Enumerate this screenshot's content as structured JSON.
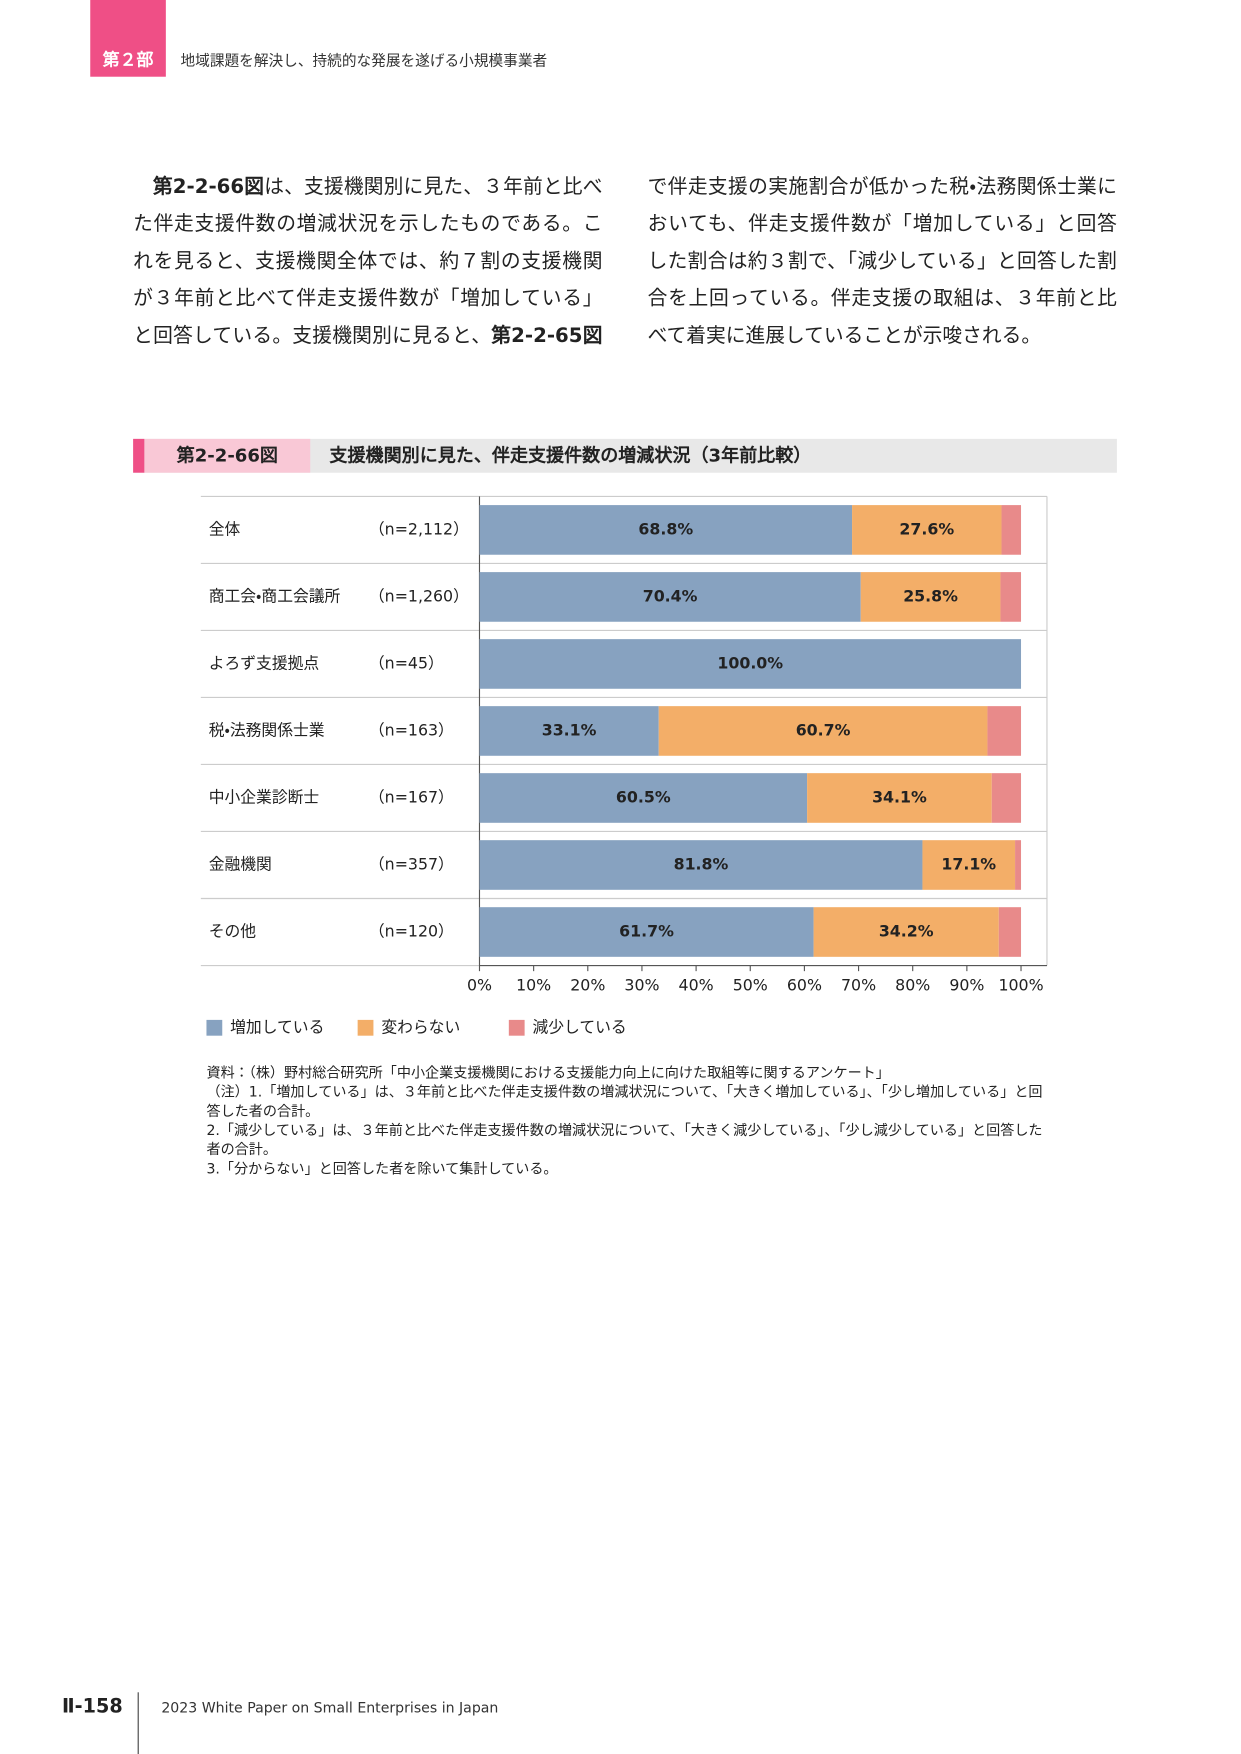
{
  "header": {
    "part": "第２部",
    "title": "地域課題を解決し、持続的な発展を遂げる小規模事業者"
  },
  "body": [
    "第2-2-66図",
    "は、支援機関別に見た、３年前と比べた伴走支援件数の増減状況を示したものである。これを見ると、支援機関全体では、約７割の支援機関が３年前と比べて伴走支援件数が「増加している」と回答している。支援機関別に見ると、",
    "第2-2-65図",
    "で伴走支援の実施割合が低かった税・法務関係士業においても、伴走支援件数が「増加している」と回答した割合は約３割で、「減少している」と回答した割合を上回っている。伴走支援の取組は、３年前と比べて着実に進展していることが示唆される。"
  ],
  "figure": {
    "number": "第2-2-66図",
    "title": "支援機関別に見た、伴走支援件数の増減状況（3年前比較）",
    "chart_data": {
      "type": "stacked-bar-horizontal",
      "categories": [
        "全体",
        "商工会・商工会議所",
        "よろず支援拠点",
        "税・法務関係士業",
        "中小企業診断士",
        "金融機関",
        "その他"
      ],
      "category_counts": [
        "（n=2,112）",
        "（n=1,260）",
        "（n=45）",
        "（n=163）",
        "（n=167）",
        "（n=357）",
        "（n=120）"
      ],
      "series": [
        {
          "name": "増加している",
          "color": "#87a2c0",
          "values": [
            68.8,
            70.4,
            100.0,
            33.1,
            60.5,
            81.8,
            61.7
          ],
          "value_labels": [
            "68.8%",
            "70.4%",
            "100.0%",
            "33.1%",
            "60.5%",
            "81.8%",
            "61.7%"
          ]
        },
        {
          "name": "変わらない",
          "color": "#f3ae68",
          "values": [
            27.6,
            25.8,
            0,
            60.7,
            34.1,
            17.1,
            34.2
          ],
          "value_labels": [
            "27.6%",
            "25.8%",
            null,
            "60.7%",
            "34.1%",
            "17.1%",
            "34.2%"
          ]
        },
        {
          "name": "減少している",
          "color": "#e88a8a",
          "values": [
            3.6,
            3.8,
            0,
            6.2,
            5.4,
            1.1,
            4.1
          ]
        }
      ],
      "xlim": [
        0,
        100
      ],
      "xticks": [
        {
          "value": 0,
          "label": "0%"
        },
        {
          "value": 10,
          "label": "10%"
        },
        {
          "value": 20,
          "label": "20%"
        },
        {
          "value": 30,
          "label": "30%"
        },
        {
          "value": 40,
          "label": "40%"
        },
        {
          "value": 50,
          "label": "50%"
        },
        {
          "value": 60,
          "label": "60%"
        },
        {
          "value": 70,
          "label": "70%"
        },
        {
          "value": 80,
          "label": "80%"
        },
        {
          "value": 90,
          "label": "90%"
        },
        {
          "value": 100,
          "label": "100%"
        }
      ],
      "legend": "bottom-left"
    }
  },
  "notes": [
    "資料：（株）野村総合研究所「中小企業支援機関における支援能力向上に向けた取組等に関するアンケート」",
    "（注）1.「増加している」は、３年前と比べた伴走支援件数の増減状況について、「大きく増加している」、「少し増加している」と回答した者の合計。",
    "2.「減少している」は、３年前と比べた伴走支援件数の増減状況について、「大きく減少している」、「少し減少している」と回答した者の合計。",
    "3.「分からない」と回答した者を除いて集計している。"
  ],
  "footer": {
    "page": "Ⅱ-158",
    "title": "2023 White Paper on Small Enterprises in Japan"
  }
}
